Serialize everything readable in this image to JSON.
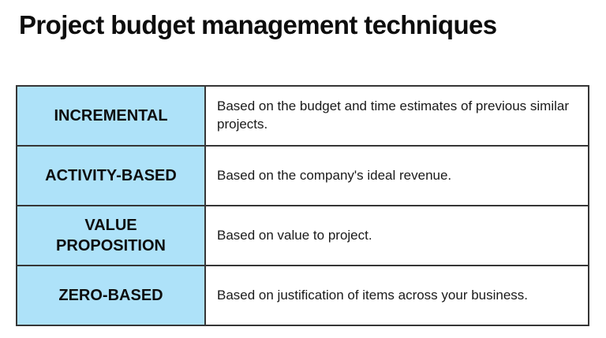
{
  "page": {
    "title": "Project budget management techniques"
  },
  "table": {
    "technique_bg_color": "#aee2f9",
    "border_color": "#363636",
    "rows": [
      {
        "technique": "INCREMENTAL",
        "description": "Based on the budget and time estimates of previous similar projects."
      },
      {
        "technique": "ACTIVITY-BASED",
        "description": "Based on the company's ideal revenue."
      },
      {
        "technique": "VALUE PROPOSITION",
        "description": "Based on value to project."
      },
      {
        "technique": "ZERO-BASED",
        "description": "Based on justification of items across your business."
      }
    ]
  }
}
